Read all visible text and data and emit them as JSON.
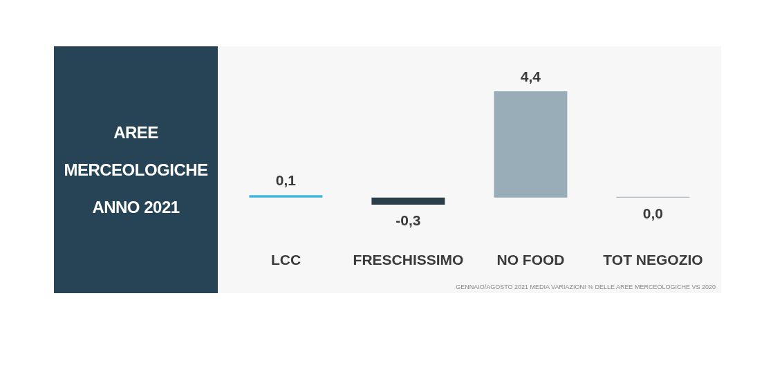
{
  "chart_data": {
    "type": "bar",
    "title": "AREE MERCEOLOGICHE ANNO 2021",
    "categories": [
      "LCC",
      "FRESCHISSIMO",
      "NO FOOD",
      "TOT NEGOZIO"
    ],
    "values": [
      0.1,
      -0.3,
      4.4,
      0.0
    ],
    "colors": [
      "#3fb6e0",
      "#2b3f4a",
      "#98adb8",
      "#98adb8"
    ],
    "value_labels": [
      "0,1",
      "-0,3",
      "4,4",
      "0,0"
    ],
    "annotations": [
      "GENNAIO/AGOSTO 2021 MEDIA VARIAZIONI % DELLE AREE MERCEOLOGICHE VS 2020"
    ]
  }
}
